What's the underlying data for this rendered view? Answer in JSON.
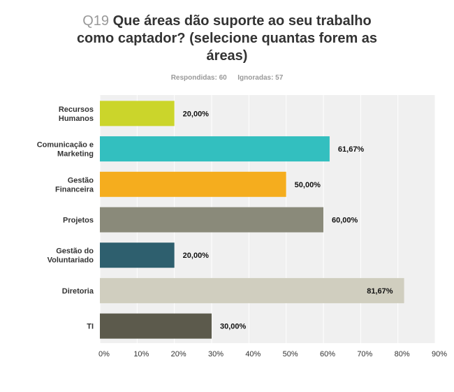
{
  "header": {
    "question_number": "Q19",
    "question_text": "Que áreas dão suporte ao seu trabalho como captador? (selecione quantas forem as áreas)",
    "answered_label": "Respondidas: 60",
    "skipped_label": "Ignoradas: 57"
  },
  "chart_data": {
    "type": "bar",
    "orientation": "horizontal",
    "categories": [
      [
        "Recursos",
        "Humanos"
      ],
      [
        "Comunicação e",
        "Marketing"
      ],
      [
        "Gestão",
        "Financeira"
      ],
      [
        "Projetos"
      ],
      [
        "Gestão do",
        "Voluntariado"
      ],
      [
        "Diretoria"
      ],
      [
        "TI"
      ]
    ],
    "values": [
      20.0,
      61.67,
      50.0,
      60.0,
      20.0,
      81.67,
      30.0
    ],
    "data_labels": [
      "20,00%",
      "61,67%",
      "50,00%",
      "60,00%",
      "20,00%",
      "81,67%",
      "30,00%"
    ],
    "colors": [
      "#cbd52b",
      "#33bfbf",
      "#f5ad1e",
      "#8a8a7a",
      "#2e5f6e",
      "#d0cebf",
      "#5c5a4c"
    ],
    "xlim": [
      0,
      90
    ],
    "x_ticks": [
      "0%",
      "10%",
      "20%",
      "30%",
      "40%",
      "50%",
      "60%",
      "70%",
      "80%",
      "90%"
    ],
    "grid": true,
    "plot_background": "#f0f0f0"
  }
}
